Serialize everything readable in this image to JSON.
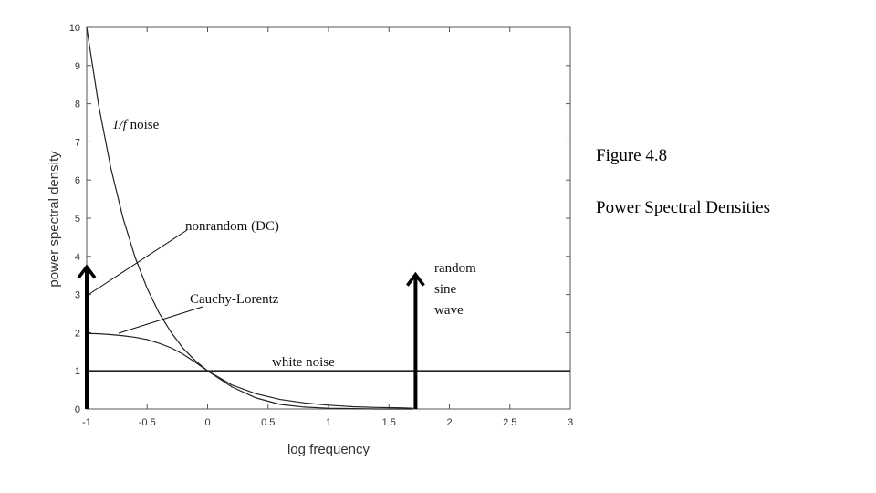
{
  "chart_data": {
    "type": "line",
    "title": "",
    "xlabel": "log frequency",
    "ylabel": "power spectral density",
    "xlim": [
      -1,
      3
    ],
    "ylim": [
      0,
      10
    ],
    "x_ticks": [
      "-1",
      "-0.5",
      "0",
      "0.5",
      "1",
      "1.5",
      "2",
      "2.5",
      "3"
    ],
    "y_ticks": [
      "0",
      "1",
      "2",
      "3",
      "4",
      "5",
      "6",
      "7",
      "8",
      "9",
      "10"
    ],
    "grid": false,
    "series": [
      {
        "name": "1/f noise",
        "x": [
          -1,
          -0.9,
          -0.8,
          -0.7,
          -0.6,
          -0.5,
          -0.4,
          -0.3,
          -0.2,
          -0.1,
          0,
          0.2,
          0.4,
          0.6,
          0.8,
          1,
          1.2,
          1.4,
          1.6,
          1.7
        ],
        "y": [
          10,
          7.94,
          6.31,
          5.01,
          3.98,
          3.16,
          2.51,
          2.0,
          1.58,
          1.26,
          1.0,
          0.63,
          0.4,
          0.25,
          0.16,
          0.1,
          0.06,
          0.04,
          0.03,
          0.02
        ]
      },
      {
        "name": "Cauchy-Lorentz",
        "x": [
          -1,
          -0.9,
          -0.8,
          -0.7,
          -0.6,
          -0.5,
          -0.4,
          -0.3,
          -0.2,
          -0.1,
          0,
          0.2,
          0.4,
          0.6,
          0.8,
          1,
          1.2,
          1.4,
          1.6,
          1.7
        ],
        "y": [
          1.98,
          1.97,
          1.95,
          1.92,
          1.88,
          1.82,
          1.72,
          1.6,
          1.43,
          1.22,
          1.0,
          0.58,
          0.29,
          0.12,
          0.05,
          0.02,
          0.01,
          0.0,
          0.0,
          0.0
        ]
      },
      {
        "name": "white noise",
        "x": [
          -1,
          3
        ],
        "y": [
          1,
          1
        ]
      }
    ],
    "impulses": [
      {
        "name": "nonrandom (DC)",
        "x": -1,
        "y": 3.7
      },
      {
        "name": "random sine wave",
        "x": 1.72,
        "y": 3.5
      }
    ],
    "annotations": {
      "one_over_f": {
        "italic": "1/f",
        "text": " noise"
      },
      "nonrandom": "nonrandom (DC)",
      "cauchy": "Cauchy-Lorentz",
      "white": "white noise",
      "random_line1": "random",
      "random_line2": "sine",
      "random_line3": "wave"
    }
  },
  "caption": {
    "figure": "Figure 4.8",
    "subtitle": "Power Spectral Densities"
  }
}
